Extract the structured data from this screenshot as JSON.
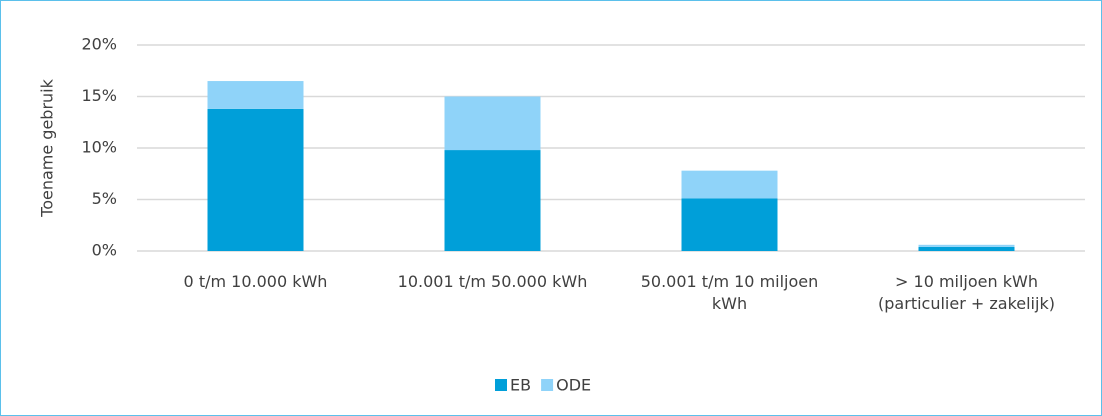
{
  "chart_data": {
    "type": "stacked-bar",
    "y_label": "Toename gebruik",
    "categories": [
      "0 t/m 10.000 kWh",
      "10.001 t/m 50.000 kWh",
      "50.001 t/m 10 miljoen kWh",
      "> 10 miljoen kWh (particulier + zakelijk)"
    ],
    "series": [
      {
        "name": "EB",
        "color": "#009fd9",
        "values": [
          13.8,
          9.8,
          5.1,
          0.4
        ]
      },
      {
        "name": "ODE",
        "color": "#8fd3f9",
        "values": [
          2.7,
          5.2,
          2.7,
          0.2
        ]
      }
    ],
    "ylim": [
      0,
      20
    ],
    "yticks": [
      {
        "value": 0,
        "label": "0%"
      },
      {
        "value": 5,
        "label": "5%"
      },
      {
        "value": 10,
        "label": "10%"
      },
      {
        "value": 15,
        "label": "15%"
      },
      {
        "value": 20,
        "label": "20%"
      }
    ],
    "grid": true,
    "legend": "bottom"
  }
}
